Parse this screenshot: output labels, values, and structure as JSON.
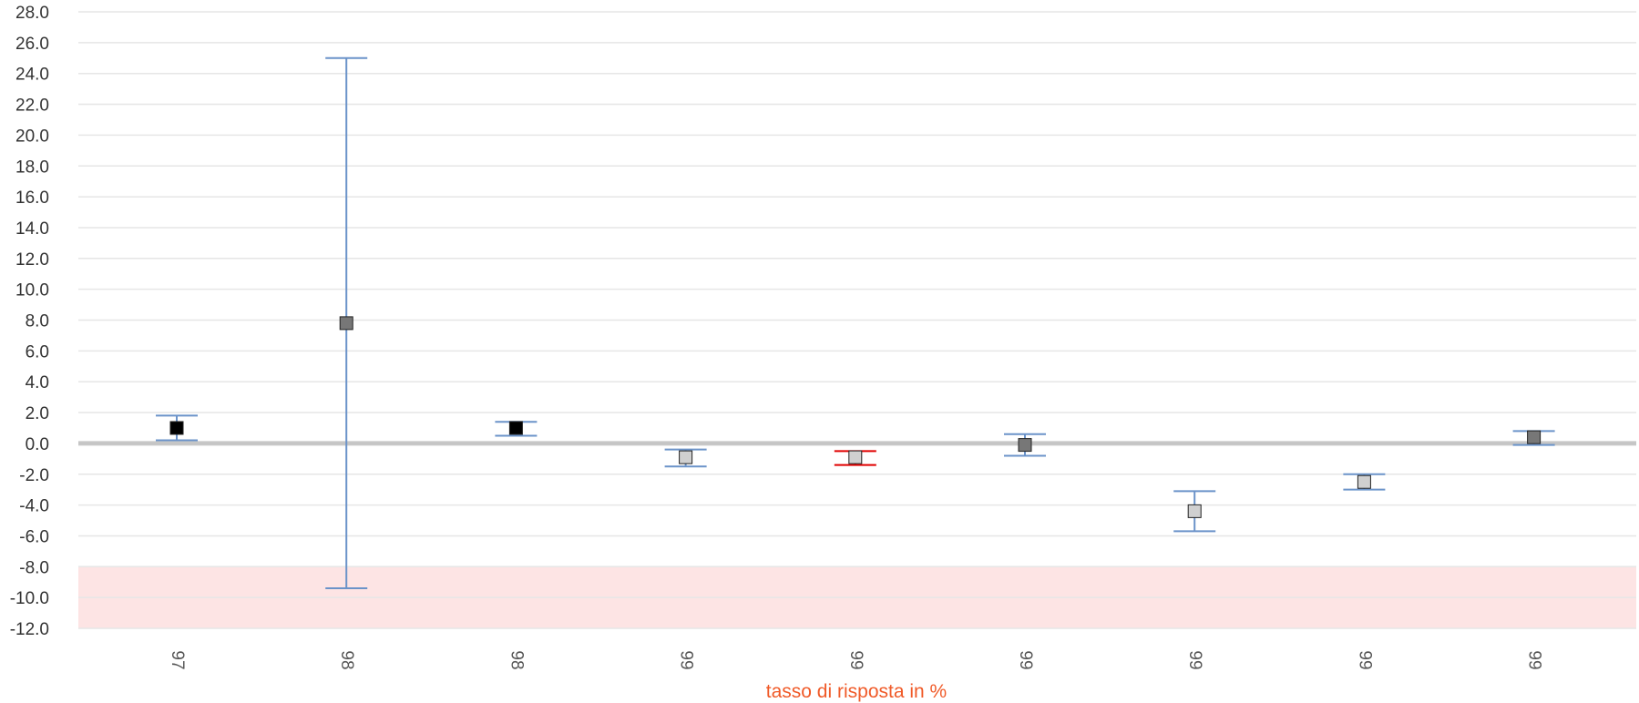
{
  "chart_data": {
    "type": "scatter",
    "title": "",
    "xlabel": "tasso di risposta in %",
    "ylabel": "",
    "ylim": [
      -12,
      28
    ],
    "ytick_step": 2,
    "grid": true,
    "categories": [
      "97",
      "98",
      "98",
      "99",
      "99",
      "99",
      "99",
      "99",
      "99"
    ],
    "points": [
      {
        "category": "97",
        "value": 1.0,
        "err_low": 0.2,
        "err_high": 1.8,
        "marker_color": "#000000",
        "error_color": "#6b93c9",
        "label_color": "#555555"
      },
      {
        "category": "98",
        "value": 7.8,
        "err_low": -9.4,
        "err_high": 25.0,
        "marker_color": "#777777",
        "error_color": "#6b93c9",
        "label_color": "#555555"
      },
      {
        "category": "98",
        "value": 1.0,
        "err_low": 0.5,
        "err_high": 1.4,
        "marker_color": "#000000",
        "error_color": "#6b93c9",
        "label_color": "#555555"
      },
      {
        "category": "99",
        "value": -0.9,
        "err_low": -1.5,
        "err_high": -0.4,
        "marker_color": "#d0d0d0",
        "error_color": "#6b93c9",
        "label_color": "#555555"
      },
      {
        "category": "99",
        "value": -0.9,
        "err_low": -1.4,
        "err_high": -0.5,
        "marker_color": "#d0d0d0",
        "error_color": "#e00000",
        "label_color": "#e00000"
      },
      {
        "category": "99",
        "value": -0.1,
        "err_low": -0.8,
        "err_high": 0.6,
        "marker_color": "#777777",
        "error_color": "#6b93c9",
        "label_color": "#555555"
      },
      {
        "category": "99",
        "value": -4.4,
        "err_low": -5.7,
        "err_high": -3.1,
        "marker_color": "#d0d0d0",
        "error_color": "#6b93c9",
        "label_color": "#555555"
      },
      {
        "category": "99",
        "value": -2.5,
        "err_low": -3.0,
        "err_high": -2.0,
        "marker_color": "#d0d0d0",
        "error_color": "#6b93c9",
        "label_color": "#555555"
      },
      {
        "category": "99",
        "value": 0.4,
        "err_low": -0.1,
        "err_high": 0.8,
        "marker_color": "#777777",
        "error_color": "#6b93c9",
        "label_color": "#555555"
      }
    ],
    "bands": [
      {
        "from": -12,
        "to": -8,
        "color": "#fde4e4"
      }
    ],
    "reference_line": {
      "value": 0,
      "color": "#bbbbbb"
    },
    "colors": {
      "grid": "#e6e6e6",
      "axis_label": "#f05a28",
      "ytick": "#333333"
    }
  }
}
